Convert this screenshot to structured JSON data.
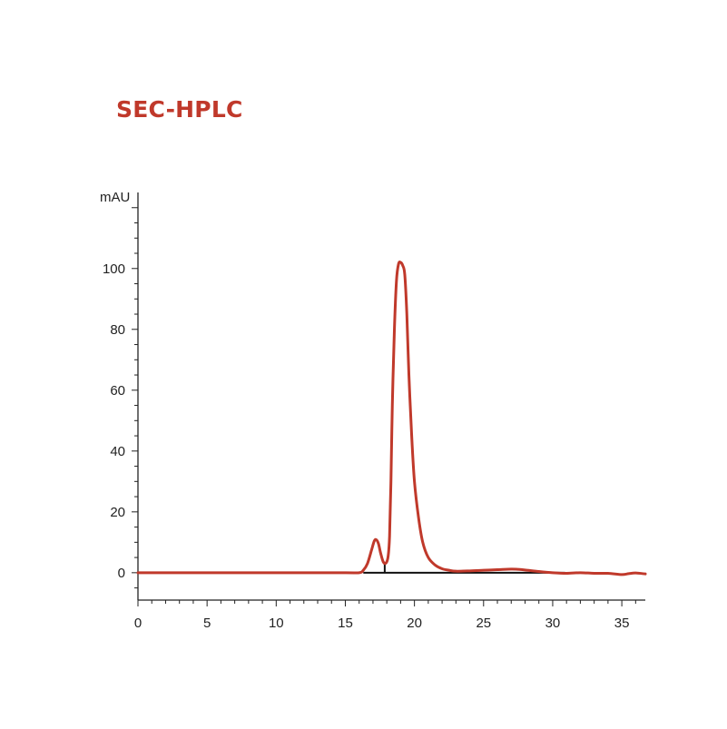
{
  "chart_data": {
    "type": "line",
    "title": "SEC-HPLC",
    "ylabel": "mAU",
    "xlabel": "",
    "xlim": [
      0,
      36.7
    ],
    "ylim": [
      -9,
      125
    ],
    "x_ticks": [
      0,
      5,
      10,
      15,
      20,
      25,
      30,
      35
    ],
    "y_ticks": [
      0,
      20,
      40,
      60,
      80,
      100
    ],
    "grid": false,
    "colors": {
      "trace": "#c0392b",
      "baseline": "#111111",
      "title": "#c0392b"
    },
    "series": [
      {
        "x": [
          0,
          5,
          10,
          15,
          16.0,
          16.3,
          16.6,
          16.9,
          17.1,
          17.25,
          17.4,
          17.55,
          17.75,
          17.95,
          18.1,
          18.2,
          18.3,
          18.4,
          18.55,
          18.7,
          18.85,
          19.0,
          19.15,
          19.3,
          19.45,
          19.6,
          19.8,
          20.0,
          20.3,
          20.6,
          21.0,
          21.5,
          22.0,
          22.5,
          23.0,
          24.0,
          25.0,
          26.0,
          27.0,
          27.5,
          28.0,
          29.0,
          30.0,
          31.0,
          32.0,
          33.0,
          34.0,
          35.0,
          35.5,
          36.0,
          36.7
        ],
        "y": [
          0,
          0,
          0,
          0,
          0,
          0.8,
          3,
          7.5,
          10.5,
          10.8,
          9.5,
          6.5,
          3.5,
          3.2,
          5.5,
          12,
          30,
          55,
          80,
          96,
          101.5,
          102,
          101,
          98,
          85,
          65,
          45,
          30,
          18,
          10,
          5,
          2.5,
          1.3,
          0.8,
          0.5,
          0.6,
          0.8,
          1.0,
          1.2,
          1.1,
          0.9,
          0.4,
          0,
          -0.2,
          0,
          -0.2,
          -0.2,
          -0.6,
          -0.3,
          -0.1,
          -0.4
        ]
      }
    ],
    "integration_baseline": {
      "x": [
        16.3,
        30.9
      ],
      "y": [
        0,
        0
      ],
      "drop_line_x": 17.85
    }
  }
}
